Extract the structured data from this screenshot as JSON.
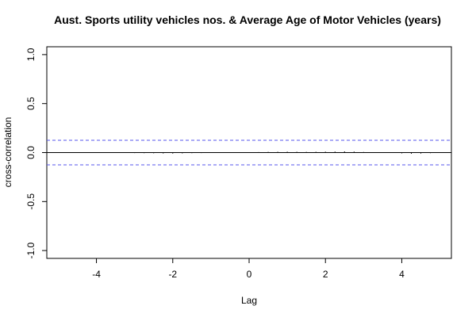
{
  "chart_data": {
    "type": "bar",
    "title": "Aust. Sports utility vehicles nos.  & Average Age of Motor Vehicles (years)",
    "xlabel": "Lag",
    "ylabel": "cross-correlation",
    "xlim": [
      -5.3,
      5.3
    ],
    "ylim": [
      -1.08,
      1.08
    ],
    "x_ticks": [
      -4,
      -2,
      0,
      2,
      4
    ],
    "x_tick_labels": [
      "-4",
      "-2",
      "0",
      "2",
      "4"
    ],
    "y_ticks": [
      -1.0,
      -0.5,
      0.0,
      0.5,
      1.0
    ],
    "y_tick_labels": [
      "-1.0",
      "-0.5",
      "0.0",
      "0.5",
      "1.0"
    ],
    "confidence_band": [
      -0.125,
      0.125
    ],
    "colors": {
      "bars": "#000000",
      "confidence": "#5555ee",
      "zero_line": "#000000"
    },
    "lags": [
      -5,
      -4.75,
      -4.5,
      -4.25,
      -4,
      -3.75,
      -3.5,
      -3.25,
      -3,
      -2.75,
      -2.5,
      -2.25,
      -2,
      -1.75,
      -1.5,
      -1.25,
      -1,
      -0.75,
      -0.5,
      -0.25,
      0,
      0.25,
      0.5,
      0.75,
      1,
      1.25,
      1.5,
      1.75,
      2,
      2.25,
      2.5,
      2.75,
      3,
      3.25,
      3.5,
      3.75,
      4,
      4.25,
      4.5,
      4.75,
      5
    ],
    "values": [
      0.004,
      0.003,
      0.002,
      0.001,
      0.0,
      -0.002,
      -0.003,
      -0.004,
      -0.005,
      -0.006,
      -0.007,
      -0.009,
      -0.01,
      -0.008,
      -0.006,
      -0.005,
      -0.004,
      -0.002,
      0.0,
      0.002,
      0.003,
      0.005,
      0.007,
      0.008,
      0.009,
      0.008,
      0.007,
      0.008,
      0.009,
      0.01,
      0.012,
      0.01,
      0.006,
      0.003,
      0.0,
      -0.004,
      -0.008,
      -0.012,
      -0.01,
      -0.006,
      -0.003
    ]
  }
}
